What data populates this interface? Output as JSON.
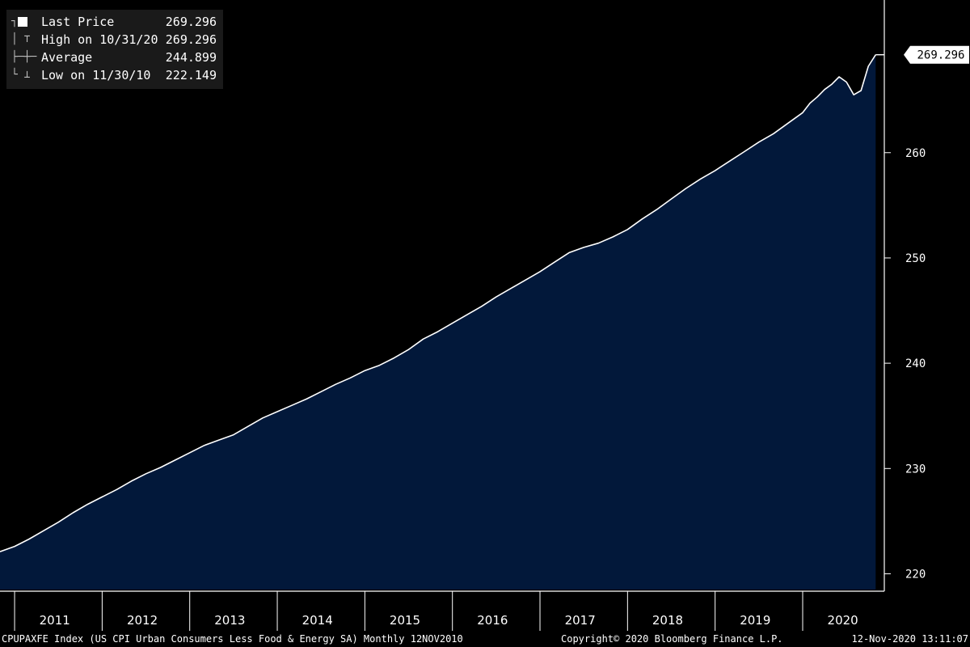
{
  "colors": {
    "background": "#000000",
    "area_fill": "#02183a",
    "line": "#ffffff",
    "axis": "#ffffff",
    "legend_bg": "#1a1a1a",
    "last_label_bg": "#ffffff"
  },
  "legend": {
    "items": [
      {
        "icon": "white-square-icon",
        "label": "Last Price",
        "value": "269.296"
      },
      {
        "icon": "high-bracket-icon",
        "label": "High on 10/31/20",
        "value": "269.296"
      },
      {
        "icon": "average-line-icon",
        "label": "Average",
        "value": "244.899"
      },
      {
        "icon": "low-bracket-icon",
        "label": "Low on 11/30/10",
        "value": "222.149"
      }
    ]
  },
  "last_price_label": "269.296",
  "footer": {
    "index": "CPUPAXFE Index (US CPI Urban Consumers Less Food & Energy SA)  Monthly 12NOV2010",
    "copyright": "Copyright© 2020 Bloomberg Finance L.P.",
    "timestamp": "12-Nov-2020 13:11:07"
  },
  "chart_data": {
    "type": "area",
    "title": "",
    "xlabel": "",
    "ylabel": "",
    "ylim": [
      218.5,
      274.5
    ],
    "xlim": [
      "2010-11-01",
      "2020-11-30"
    ],
    "y_ticks": [
      220,
      230,
      240,
      250,
      260
    ],
    "x_tick_labels": [
      "2011",
      "2012",
      "2013",
      "2014",
      "2015",
      "2016",
      "2017",
      "2018",
      "2019",
      "2020"
    ],
    "y_axis_position": "right",
    "grid": false,
    "legend_position": "top-left",
    "series": [
      {
        "name": "Last Price",
        "x": [
          "2010-11",
          "2011-01",
          "2011-03",
          "2011-05",
          "2011-07",
          "2011-09",
          "2011-11",
          "2012-01",
          "2012-03",
          "2012-05",
          "2012-07",
          "2012-09",
          "2012-11",
          "2013-01",
          "2013-03",
          "2013-05",
          "2013-07",
          "2013-09",
          "2013-11",
          "2014-01",
          "2014-03",
          "2014-05",
          "2014-07",
          "2014-09",
          "2014-11",
          "2015-01",
          "2015-03",
          "2015-05",
          "2015-07",
          "2015-09",
          "2015-11",
          "2016-01",
          "2016-03",
          "2016-05",
          "2016-07",
          "2016-09",
          "2016-11",
          "2017-01",
          "2017-03",
          "2017-05",
          "2017-07",
          "2017-09",
          "2017-11",
          "2018-01",
          "2018-03",
          "2018-05",
          "2018-07",
          "2018-09",
          "2018-11",
          "2019-01",
          "2019-03",
          "2019-05",
          "2019-07",
          "2019-09",
          "2019-11",
          "2020-01",
          "2020-02",
          "2020-03",
          "2020-04",
          "2020-05",
          "2020-06",
          "2020-07",
          "2020-08",
          "2020-09",
          "2020-10",
          "2020-11"
        ],
        "values": [
          222.1,
          222.6,
          223.3,
          224.1,
          224.9,
          225.8,
          226.6,
          227.3,
          228.0,
          228.8,
          229.5,
          230.1,
          230.8,
          231.5,
          232.2,
          232.7,
          233.2,
          234.0,
          234.8,
          235.4,
          236.0,
          236.6,
          237.3,
          238.0,
          238.6,
          239.3,
          239.8,
          240.5,
          241.3,
          242.3,
          243.0,
          243.8,
          244.6,
          245.4,
          246.3,
          247.1,
          247.9,
          248.7,
          249.6,
          250.5,
          251.0,
          251.4,
          252.0,
          252.7,
          253.7,
          254.6,
          255.6,
          256.6,
          257.5,
          258.3,
          259.2,
          260.1,
          261.0,
          261.8,
          262.8,
          263.8,
          264.7,
          265.3,
          266.0,
          266.5,
          267.2,
          266.7,
          265.5,
          265.9,
          268.2,
          269.3
        ]
      }
    ]
  }
}
